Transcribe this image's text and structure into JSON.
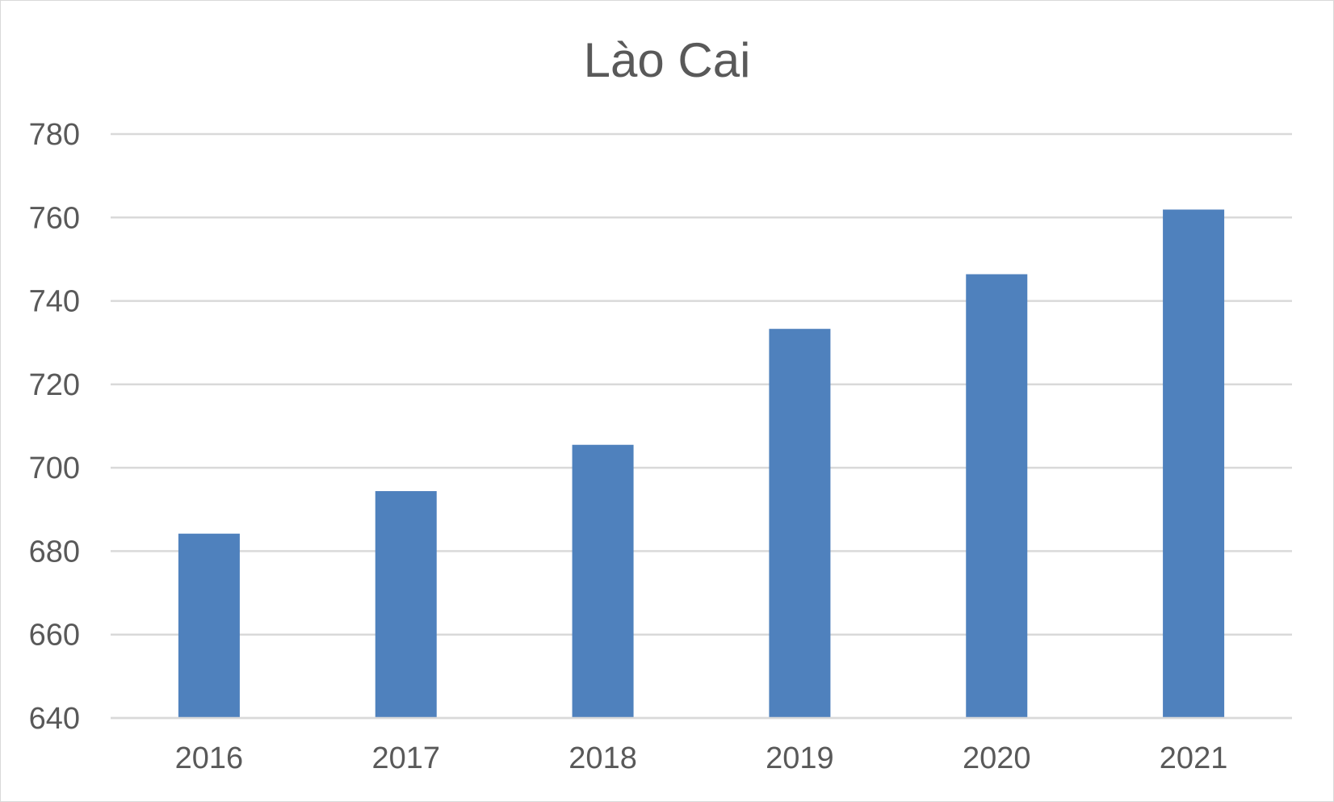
{
  "chart_data": {
    "type": "bar",
    "title": "Lào Cai",
    "xlabel": "",
    "ylabel": "",
    "categories": [
      "2016",
      "2017",
      "2018",
      "2019",
      "2020",
      "2021"
    ],
    "values": [
      684.2,
      694.4,
      705.5,
      733.3,
      746.4,
      761.9
    ],
    "ylim": [
      640,
      780
    ],
    "yticks": [
      640,
      660,
      680,
      700,
      720,
      740,
      760,
      780
    ],
    "grid": true,
    "legend": "none",
    "colors": {
      "bar": "#4f81bd",
      "grid": "#d9d9d9",
      "text": "#595959"
    }
  }
}
